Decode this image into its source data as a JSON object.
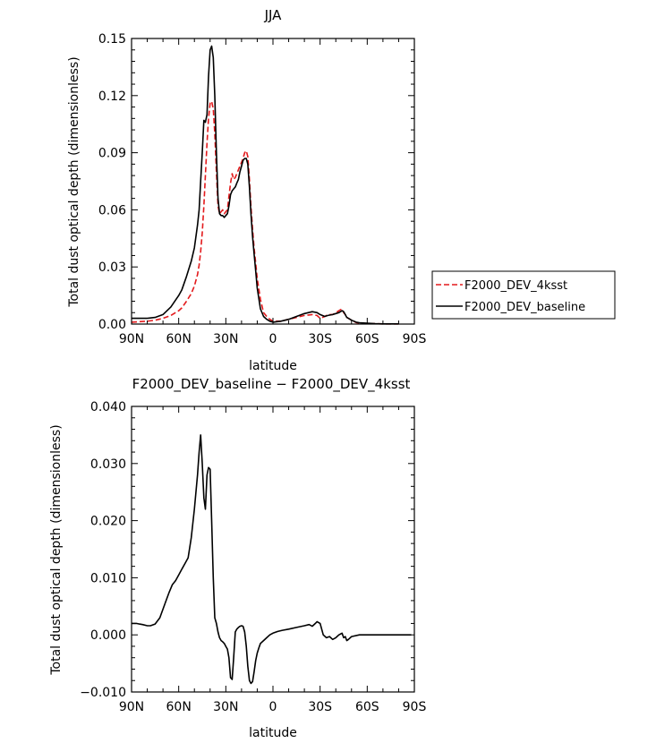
{
  "chart_data": [
    {
      "type": "line",
      "title": "JJA",
      "xlabel": "latitude",
      "ylabel": "Total dust optical depth (dimensionless)",
      "xlim": [
        90,
        -90
      ],
      "ylim": [
        0,
        0.15
      ],
      "x_ticks": [
        90,
        60,
        30,
        0,
        -30,
        -60,
        -90
      ],
      "x_tick_labels": [
        "90N",
        "60N",
        "30N",
        "0",
        "30S",
        "60S",
        "90S"
      ],
      "y_ticks": [
        0,
        0.03,
        0.06,
        0.09,
        0.12,
        0.15
      ],
      "y_tick_labels": [
        "0.00",
        "0.03",
        "0.06",
        "0.09",
        "0.12",
        "0.15"
      ],
      "legend_position": "right",
      "series": [
        {
          "name": "F2000_DEV_4ksst",
          "color": "#e31a1c",
          "dash": "dashed",
          "x": [
            90,
            80,
            75,
            70,
            65,
            60,
            58,
            55,
            52,
            50,
            48,
            47,
            46,
            45,
            44,
            43,
            42,
            41,
            40,
            39,
            38,
            37,
            36,
            35,
            34,
            33,
            32,
            31,
            30,
            29,
            28,
            27,
            26,
            25,
            24,
            23,
            22,
            21,
            20,
            19,
            18,
            17,
            16,
            15,
            14,
            13,
            12,
            11,
            10,
            8,
            6,
            4,
            2,
            0,
            -5,
            -10,
            -15,
            -20,
            -25,
            -28,
            -30,
            -33,
            -35,
            -38,
            -40,
            -42,
            -44,
            -45,
            -46,
            -47,
            -48,
            -50,
            -53,
            -55,
            -60,
            -65,
            -70,
            -75,
            -80
          ],
          "y": [
            0.001,
            0.0015,
            0.002,
            0.003,
            0.0045,
            0.007,
            0.0085,
            0.012,
            0.016,
            0.02,
            0.026,
            0.031,
            0.038,
            0.048,
            0.062,
            0.078,
            0.095,
            0.108,
            0.116,
            0.117,
            0.113,
            0.1,
            0.08,
            0.062,
            0.058,
            0.059,
            0.06,
            0.058,
            0.059,
            0.06,
            0.067,
            0.074,
            0.079,
            0.076,
            0.077,
            0.079,
            0.081,
            0.083,
            0.085,
            0.087,
            0.09,
            0.091,
            0.088,
            0.076,
            0.062,
            0.05,
            0.04,
            0.032,
            0.024,
            0.013,
            0.006,
            0.004,
            0.0025,
            0.0015,
            0.0015,
            0.0025,
            0.0035,
            0.0045,
            0.005,
            0.0045,
            0.003,
            0.004,
            0.005,
            0.005,
            0.006,
            0.007,
            0.008,
            0.006,
            0.005,
            0.0035,
            0.003,
            0.002,
            0.0008,
            0.0005,
            0.0003,
            0.0002,
            0.0001,
            0.0001,
            0.0001
          ]
        },
        {
          "name": "F2000_DEV_baseline",
          "color": "#000000",
          "dash": "solid",
          "x": [
            90,
            80,
            75,
            70,
            65,
            60,
            58,
            55,
            52,
            50,
            48,
            47,
            46,
            45,
            44,
            43,
            42,
            41,
            40,
            39,
            38,
            37,
            36,
            35,
            34,
            33,
            32,
            31,
            30,
            29,
            28,
            27,
            26,
            25,
            24,
            23,
            22,
            21,
            20,
            19,
            18,
            17,
            16,
            15,
            14,
            13,
            12,
            11,
            10,
            8,
            6,
            4,
            2,
            0,
            -5,
            -10,
            -15,
            -20,
            -25,
            -28,
            -30,
            -33,
            -35,
            -38,
            -40,
            -42,
            -44,
            -45,
            -46,
            -47,
            -48,
            -50,
            -53,
            -55,
            -60,
            -65,
            -70,
            -75,
            -80
          ],
          "y": [
            0.003,
            0.003,
            0.0035,
            0.005,
            0.009,
            0.015,
            0.018,
            0.025,
            0.033,
            0.04,
            0.052,
            0.06,
            0.075,
            0.09,
            0.107,
            0.106,
            0.11,
            0.13,
            0.144,
            0.146,
            0.14,
            0.12,
            0.09,
            0.066,
            0.058,
            0.057,
            0.057,
            0.056,
            0.057,
            0.058,
            0.062,
            0.068,
            0.07,
            0.071,
            0.072,
            0.074,
            0.076,
            0.08,
            0.083,
            0.086,
            0.087,
            0.087,
            0.084,
            0.072,
            0.058,
            0.046,
            0.037,
            0.028,
            0.019,
            0.008,
            0.004,
            0.0025,
            0.0015,
            0.001,
            0.0015,
            0.0025,
            0.004,
            0.0055,
            0.0065,
            0.006,
            0.005,
            0.004,
            0.0045,
            0.005,
            0.0055,
            0.006,
            0.007,
            0.0065,
            0.005,
            0.0035,
            0.003,
            0.002,
            0.001,
            0.0007,
            0.0004,
            0.0002,
            0.0001,
            0.0001,
            0.0001
          ]
        }
      ]
    },
    {
      "type": "line",
      "title": "F2000_DEV_baseline − F2000_DEV_4ksst",
      "xlabel": "latitude",
      "ylabel": "Total dust optical depth (dimensionless)",
      "xlim": [
        90,
        -90
      ],
      "ylim": [
        -0.01,
        0.04
      ],
      "x_ticks": [
        90,
        60,
        30,
        0,
        -30,
        -60,
        -90
      ],
      "x_tick_labels": [
        "90N",
        "60N",
        "30N",
        "0",
        "30S",
        "60S",
        "90S"
      ],
      "y_ticks": [
        -0.01,
        0,
        0.01,
        0.02,
        0.03,
        0.04
      ],
      "y_tick_labels": [
        "−0.010",
        "0.000",
        "0.010",
        "0.020",
        "0.030",
        "0.040"
      ],
      "series": [
        {
          "color": "#000000",
          "dash": "solid",
          "x": [
            90,
            87,
            85,
            83,
            80,
            78,
            75,
            72,
            70,
            68,
            66,
            64,
            62,
            60,
            58,
            56,
            54,
            52,
            50,
            48,
            47,
            46,
            45,
            44,
            43,
            42,
            41,
            40,
            39,
            38,
            37,
            36,
            35,
            34,
            33,
            32,
            31,
            30,
            29,
            28,
            27,
            26,
            25,
            24,
            23,
            22,
            21,
            20,
            19,
            18,
            17,
            16,
            15,
            14,
            13,
            12,
            11,
            10,
            9,
            8,
            6,
            4,
            2,
            0,
            -3,
            -6,
            -10,
            -15,
            -20,
            -23,
            -25,
            -27,
            -28,
            -30,
            -32,
            -34,
            -36,
            -38,
            -40,
            -42,
            -44,
            -45,
            -46,
            -47,
            -48,
            -50,
            -55,
            -60,
            -65,
            -70,
            -75,
            -80,
            -85,
            -88
          ],
          "y": [
            0.002,
            0.002,
            0.0019,
            0.0018,
            0.0016,
            0.0016,
            0.0019,
            0.003,
            0.0045,
            0.006,
            0.0075,
            0.0088,
            0.0095,
            0.0105,
            0.0115,
            0.0125,
            0.0135,
            0.017,
            0.022,
            0.028,
            0.032,
            0.035,
            0.03,
            0.024,
            0.022,
            0.028,
            0.0293,
            0.029,
            0.02,
            0.01,
            0.003,
            0.002,
            0.0005,
            -0.0005,
            -0.001,
            -0.0012,
            -0.0015,
            -0.002,
            -0.0025,
            -0.004,
            -0.0075,
            -0.0078,
            -0.004,
            0.0005,
            0.001,
            0.0013,
            0.0015,
            0.0016,
            0.0015,
            0.0005,
            -0.002,
            -0.0055,
            -0.008,
            -0.0085,
            -0.0082,
            -0.0065,
            -0.0045,
            -0.0032,
            -0.0023,
            -0.0015,
            -0.001,
            -0.0005,
            0.0,
            0.0003,
            0.0006,
            0.0008,
            0.001,
            0.0013,
            0.0016,
            0.0018,
            0.0015,
            0.002,
            0.0023,
            0.002,
            0.0,
            -0.0005,
            -0.0003,
            -0.0008,
            -0.0005,
            0.0,
            0.0003,
            -0.0005,
            -0.0003,
            -0.001,
            -0.0008,
            -0.0003,
            0.0,
            0.0,
            0.0,
            0.0,
            0.0,
            0.0,
            0.0,
            0.0
          ]
        }
      ]
    }
  ]
}
